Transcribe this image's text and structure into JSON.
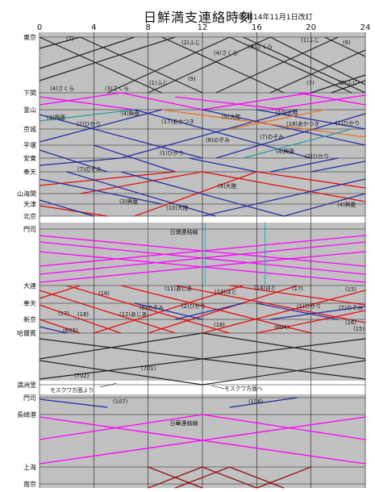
{
  "title": "日鮮満支連絡時刻",
  "subtitle": "昭和14年11月1日改訂",
  "hour_ticks": [
    "0",
    "4",
    "8",
    "12",
    "16",
    "20",
    "24"
  ],
  "stations": [
    "東京",
    "下関",
    "釜山",
    "京城",
    "平壌",
    "安東",
    "奉天",
    "山海関",
    "天津",
    "北京",
    "門司",
    "大連",
    "奉天",
    "新京",
    "哈爾賓",
    "満洲里",
    "門司",
    "長崎港",
    "上海",
    "南京"
  ],
  "panel_labels": [
    "日満連絡線",
    "日華連絡線"
  ],
  "direction_notes": [
    "モスクワ方面より",
    "モスクワ方面へ"
  ],
  "train_labels": [
    {
      "label": "(7)",
      "section": "東京-下関"
    },
    {
      "label": "(2)ふじ",
      "section": "東京-下関"
    },
    {
      "label": "(1)ふじ",
      "section": "東京-下関"
    },
    {
      "label": "(9)",
      "section": "東京-下関"
    },
    {
      "label": "(4)さくら",
      "section": "東京-下関"
    },
    {
      "label": "(3)さくら",
      "section": "東京-下関"
    },
    {
      "label": "(1)ふじ",
      "section": "東京-下関"
    },
    {
      "label": "(9)",
      "section": "東京-下関"
    },
    {
      "label": "(4)さくら",
      "section": "東京-下関"
    },
    {
      "label": "(3)さくら",
      "section": "東京-下関"
    },
    {
      "label": "(7)",
      "section": "東京-下関"
    },
    {
      "label": "(2)ふじ",
      "section": "東京-下関"
    },
    {
      "label": "(3)興亜",
      "section": "釜山-奉天"
    },
    {
      "label": "(4)興亜",
      "section": "釜山-奉天"
    },
    {
      "label": "(2)ひかり",
      "section": "釜山-奉天"
    },
    {
      "label": "(17)あかつき",
      "section": "釜山-奉天"
    },
    {
      "label": "(9)大陸",
      "section": "釜山-奉天"
    },
    {
      "label": "(10)大陸",
      "section": "釜山-奉天"
    },
    {
      "label": "(18)あかつき",
      "section": "釜山-奉天"
    },
    {
      "label": "(1)ひかり",
      "section": "釜山-奉天"
    },
    {
      "label": "(8)のぞみ",
      "section": "釜山-奉天"
    },
    {
      "label": "(7)のぞみ",
      "section": "釜山-奉天"
    },
    {
      "label": "(4)興亜",
      "section": "釜山-奉天"
    },
    {
      "label": "(1)ひかり",
      "section": "釜山-奉天"
    },
    {
      "label": "(2)ひかり",
      "section": "釜山-奉天"
    },
    {
      "label": "(7)のぞみ",
      "section": "釜山-奉天"
    },
    {
      "label": "(9)大陸",
      "section": "奉天-北京"
    },
    {
      "label": "(3)興亜",
      "section": "奉天-北京"
    },
    {
      "label": "(10)大陸",
      "section": "奉天-北京"
    },
    {
      "label": "(4)興亜",
      "section": "奉天-北京"
    },
    {
      "label": "(11)あじあ",
      "section": "大連-哈爾賓"
    },
    {
      "label": "(13)はと",
      "section": "大連-哈爾賓"
    },
    {
      "label": "(14)はと",
      "section": "大連-哈爾賓"
    },
    {
      "label": "(17)",
      "section": "大連-哈爾賓"
    },
    {
      "label": "(16)",
      "section": "大連-哈爾賓"
    },
    {
      "label": "(15)",
      "section": "大連-哈爾賓"
    },
    {
      "label": "(1)ひかり",
      "section": "大連-哈爾賓"
    },
    {
      "label": "(8)のぞみ",
      "section": "大連-哈爾賓"
    },
    {
      "label": "(7)のぞみ",
      "section": "大連-哈爾賓"
    },
    {
      "label": "(2)ひかり",
      "section": "大連-哈爾賓"
    },
    {
      "label": "(17)",
      "section": "大連-哈爾賓"
    },
    {
      "label": "(18)",
      "section": "大連-哈爾賓"
    },
    {
      "label": "(12)あじあ",
      "section": "大連-哈爾賓"
    },
    {
      "label": "(18)",
      "section": "大連-哈爾賓"
    },
    {
      "label": "(604)",
      "section": "大連-哈爾賓"
    },
    {
      "label": "(603)",
      "section": "大連-哈爾賓"
    },
    {
      "label": "(16)",
      "section": "大連-哈爾賓"
    },
    {
      "label": "(15)",
      "section": "大連-哈爾賓"
    },
    {
      "label": "(701)",
      "section": "哈爾賓-満洲里"
    },
    {
      "label": "(702)",
      "section": "哈爾賓-満洲里"
    },
    {
      "label": "(107)",
      "section": "門司-長崎港"
    },
    {
      "label": "(108)",
      "section": "門司-長崎港"
    }
  ],
  "colors": {
    "panel_bg": "#c0c0c0",
    "gap_bg": "#ffffff",
    "grid": "#1a1a1a",
    "tokaido": "#222222",
    "shimonoseki_ferry": "#ff00ff",
    "korea_blue": "#1f2aa0",
    "korea_orange": "#e07820",
    "korea_cyan": "#2a9aa0",
    "red": "#e01010",
    "dark_red": "#8b1010",
    "teal_connector": "#2a9aa0"
  }
}
